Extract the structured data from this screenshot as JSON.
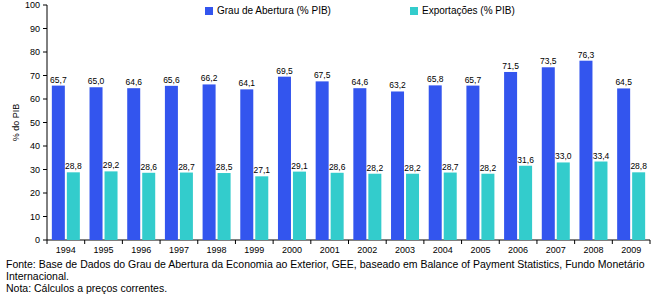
{
  "chart_data": {
    "type": "bar",
    "categories": [
      "1994",
      "1995",
      "1996",
      "1997",
      "1998",
      "1999",
      "2000",
      "2001",
      "2002",
      "2003",
      "2004",
      "2005",
      "2006",
      "2007",
      "2008",
      "2009"
    ],
    "series": [
      {
        "name": "Grau de Abertura (% PIB)",
        "color": "#3355ee",
        "values": [
          65.7,
          65.0,
          64.6,
          65.6,
          66.2,
          64.1,
          69.5,
          67.5,
          64.6,
          63.2,
          65.8,
          65.7,
          71.5,
          73.5,
          76.3,
          64.5
        ],
        "value_labels": [
          "65,7",
          "65,0",
          "64,6",
          "65,6",
          "66,2",
          "64,1",
          "69,5",
          "67,5",
          "64,6",
          "63,2",
          "65,8",
          "65,7",
          "71,5",
          "73,5",
          "76,3",
          "64,5"
        ]
      },
      {
        "name": "Exportações (% PIB)",
        "color": "#33cccc",
        "values": [
          28.8,
          29.2,
          28.6,
          28.7,
          28.5,
          27.1,
          29.1,
          28.6,
          28.2,
          28.2,
          28.7,
          28.2,
          31.6,
          33.0,
          33.4,
          28.8
        ],
        "value_labels": [
          "28,8",
          "29,2",
          "28,6",
          "28,7",
          "28,5",
          "27,1",
          "29,1",
          "28,6",
          "28,2",
          "28,2",
          "28,7",
          "28,2",
          "31,6",
          "33,0",
          "33,4",
          "28,8"
        ]
      }
    ],
    "y_label": "% do PIB",
    "ylim": [
      0,
      100
    ],
    "yticks": [
      0,
      10,
      20,
      30,
      40,
      50,
      60,
      70,
      80,
      90,
      100
    ],
    "grid": false,
    "legend": "top",
    "data_labels": true,
    "notes": [
      "Fonte: Base de Dados do Grau de Abertura da Economia ao Exterior, GEE, baseado em Balance of Payment Statistics, Fundo Monetário Internacional.",
      "Nota: Cálculos a preços correntes."
    ]
  }
}
